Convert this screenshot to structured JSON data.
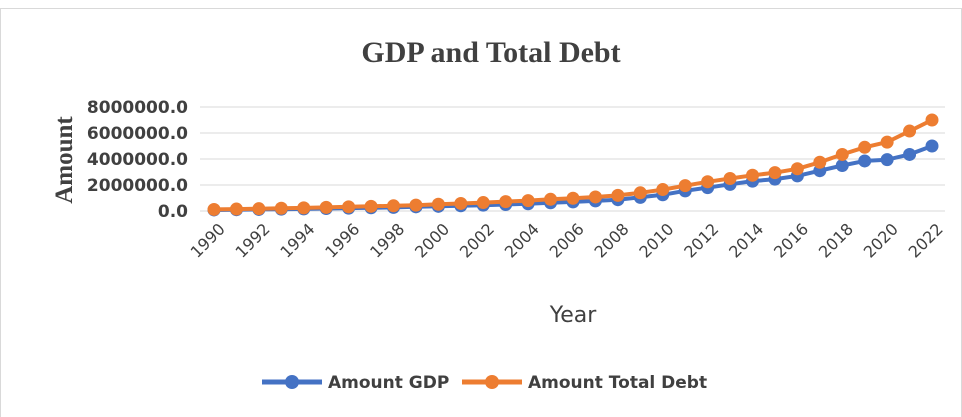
{
  "chart_data": {
    "type": "line",
    "title": "GDP and Total Debt",
    "xlabel": "Year",
    "ylabel": "Amount",
    "x": [
      1990,
      1991,
      1992,
      1993,
      1994,
      1995,
      1996,
      1997,
      1998,
      1999,
      2000,
      2001,
      2002,
      2003,
      2004,
      2005,
      2006,
      2007,
      2008,
      2009,
      2010,
      2011,
      2012,
      2013,
      2014,
      2015,
      2016,
      2017,
      2018,
      2019,
      2020,
      2021,
      2022
    ],
    "x_tick_labels": [
      "1990",
      "1992",
      "1994",
      "1996",
      "1998",
      "2000",
      "2002",
      "2004",
      "2006",
      "2008",
      "2010",
      "2012",
      "2014",
      "2016",
      "2018",
      "2020",
      "2022"
    ],
    "y_tick_labels": [
      "8000000.0",
      "6000000.0",
      "4000000.0",
      "2000000.0",
      "0.0"
    ],
    "ylim": [
      0,
      8000000
    ],
    "y_ticks": [
      8000000,
      6000000,
      4000000,
      2000000,
      0
    ],
    "grid": "horizontal",
    "legend_position": "bottom",
    "series": [
      {
        "name": "Amount GDP",
        "color": "#4472c4",
        "values": [
          80000,
          100000,
          120000,
          140000,
          160000,
          190000,
          220000,
          250000,
          280000,
          320000,
          360000,
          400000,
          450000,
          500000,
          560000,
          630000,
          700000,
          780000,
          870000,
          1050000,
          1250000,
          1550000,
          1800000,
          2050000,
          2300000,
          2450000,
          2700000,
          3100000,
          3500000,
          3850000,
          3950000,
          4350000,
          5000000
        ]
      },
      {
        "name": "Amount Total Debt",
        "color": "#ed7d31",
        "values": [
          120000,
          150000,
          180000,
          210000,
          240000,
          280000,
          320000,
          360000,
          400000,
          450000,
          520000,
          580000,
          650000,
          720000,
          800000,
          900000,
          980000,
          1080000,
          1200000,
          1400000,
          1650000,
          1950000,
          2250000,
          2500000,
          2750000,
          2950000,
          3250000,
          3750000,
          4350000,
          4900000,
          5300000,
          6150000,
          7000000
        ]
      }
    ]
  }
}
